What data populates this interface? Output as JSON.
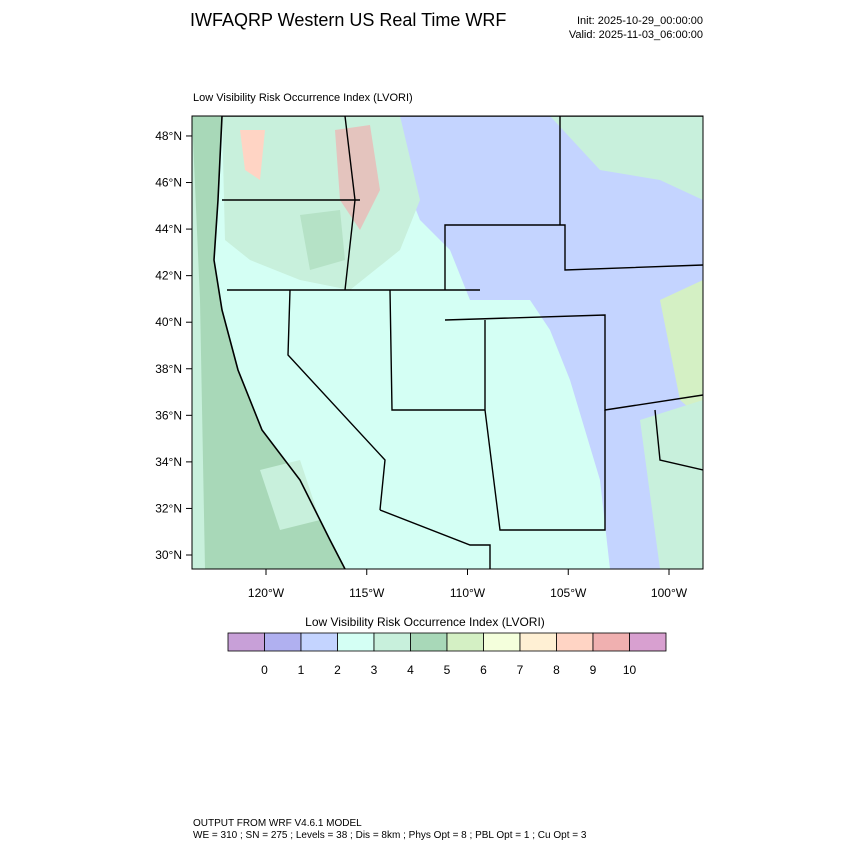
{
  "header": {
    "title": "IWFAQRP Western US Real Time WRF",
    "init": "Init: 2025-10-29_00:00:00",
    "valid": "Valid: 2025-11-03_06:00:00"
  },
  "map": {
    "title": "Low Visibility Risk Occurrence Index   (LVORI)",
    "lat_ticks": [
      {
        "value": 48,
        "label": "48°N"
      },
      {
        "value": 46,
        "label": "46°N"
      },
      {
        "value": 44,
        "label": "44°N"
      },
      {
        "value": 42,
        "label": "42°N"
      },
      {
        "value": 40,
        "label": "40°N"
      },
      {
        "value": 38,
        "label": "38°N"
      },
      {
        "value": 36,
        "label": "36°N"
      },
      {
        "value": 34,
        "label": "34°N"
      },
      {
        "value": 32,
        "label": "32°N"
      },
      {
        "value": 30,
        "label": "30°N"
      }
    ],
    "lon_ticks": [
      {
        "value": -120,
        "label": "120°W"
      },
      {
        "value": -115,
        "label": "115°W"
      },
      {
        "value": -110,
        "label": "110°W"
      },
      {
        "value": -105,
        "label": "105°W"
      },
      {
        "value": -100,
        "label": "100°W"
      }
    ]
  },
  "colorbar": {
    "title": "Low Visibility Risk Occurrence Index  (LVORI)",
    "colors": [
      "#c8a0d8",
      "#b0b0f0",
      "#c4d4ff",
      "#d4fff4",
      "#c8f0dc",
      "#a8d8b8",
      "#d4f0c4",
      "#f4ffdc",
      "#fff0d4",
      "#ffd4c4",
      "#f0b0b0",
      "#d8a0d0"
    ],
    "labels": [
      0,
      1,
      2,
      3,
      4,
      5,
      6,
      7,
      8,
      9,
      10
    ]
  },
  "footer": {
    "line1": "OUTPUT FROM WRF V4.6.1 MODEL",
    "line2": "WE = 310 ; SN = 275 ; Levels = 38 ; Dis = 8km ; Phys Opt = 8 ; PBL Opt = 1 ; Cu Opt = 3"
  }
}
